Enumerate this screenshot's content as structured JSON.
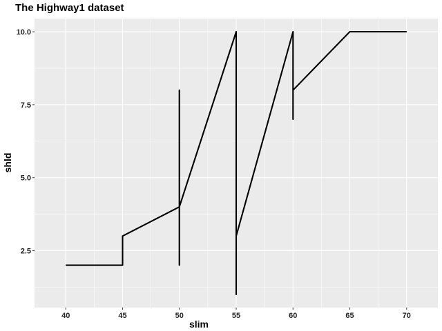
{
  "chart_data": {
    "type": "line",
    "title": "The Highway1 dataset",
    "xlabel": "slim",
    "ylabel": "shld",
    "xlim": [
      37.25,
      72.75
    ],
    "ylim": [
      0.55,
      10.45
    ],
    "x_ticks": [
      40,
      45,
      50,
      55,
      60,
      65,
      70
    ],
    "x_tick_labels": [
      "40",
      "45",
      "50",
      "55",
      "60",
      "65",
      "70"
    ],
    "y_ticks": [
      2.5,
      5.0,
      7.5,
      10.0
    ],
    "y_tick_labels": [
      "2.5",
      "5.0",
      "7.5",
      "10.0"
    ],
    "grid": true,
    "legend": "none",
    "series": [
      {
        "x": [
          40,
          45,
          45,
          50,
          50,
          50,
          50,
          55,
          55,
          55,
          55,
          60,
          60,
          60,
          60,
          65,
          70
        ],
        "y": [
          2,
          2,
          3,
          4,
          2,
          8,
          4,
          10,
          1,
          10,
          3,
          10,
          7,
          10,
          8,
          10,
          10
        ],
        "color": "#000000"
      }
    ]
  },
  "colors": {
    "panel_background": "#ebebeb",
    "grid_major": "#ffffff",
    "line": "#000000"
  }
}
